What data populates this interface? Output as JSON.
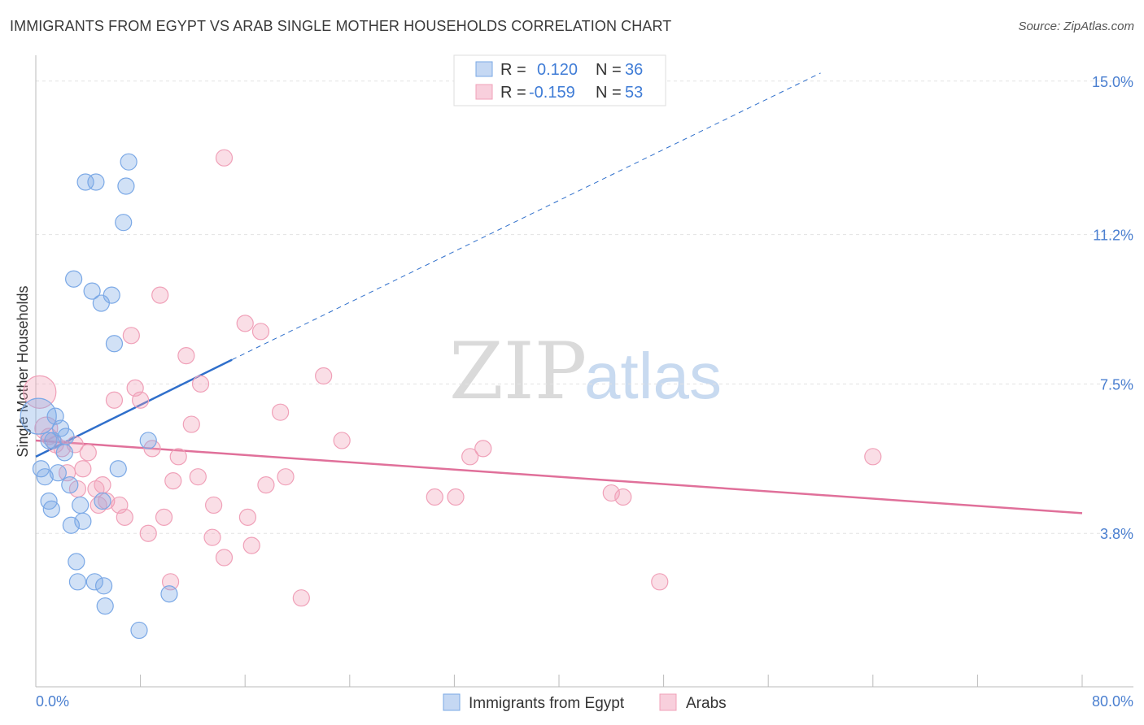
{
  "title": "IMMIGRANTS FROM EGYPT VS ARAB SINGLE MOTHER HOUSEHOLDS CORRELATION CHART",
  "source": "Source: ZipAtlas.com",
  "watermark": {
    "zip": "ZIP",
    "atlas": "atlas"
  },
  "colors": {
    "blue": "#7aa8e6",
    "blue_line": "#2f6fcb",
    "pink": "#f0a0b8",
    "pink_line": "#e0709a",
    "tick": "#4a7fd0"
  },
  "legend": {
    "r_label": "R =",
    "n_label": "N =",
    "rows": [
      {
        "r": "0.120",
        "n": "36"
      },
      {
        "r": "-0.159",
        "n": "53"
      }
    ]
  },
  "chart_data": {
    "type": "scatter",
    "title": "IMMIGRANTS FROM EGYPT VS ARAB SINGLE MOTHER HOUSEHOLDS CORRELATION CHART",
    "xlabel": "",
    "ylabel": "Single Mother Households",
    "xlim": [
      0,
      80
    ],
    "ylim": [
      0,
      15.6
    ],
    "x_tick_labels": [
      "0.0%",
      "80.0%"
    ],
    "y_ticks": [
      3.8,
      7.5,
      11.2,
      15.0
    ],
    "y_tick_labels": [
      "3.8%",
      "7.5%",
      "11.2%",
      "15.0%"
    ],
    "series": [
      {
        "name": "Immigrants from Egypt",
        "color": "#7aa8e6",
        "r": 0.12,
        "n": 36,
        "trend": {
          "x0": 0,
          "y0": 5.7,
          "x1": 15,
          "y1": 8.1,
          "dashed_to_x": 60,
          "dashed_to_y": 15.2
        },
        "points": [
          [
            0.2,
            6.7,
            22
          ],
          [
            0.4,
            5.4,
            10
          ],
          [
            0.7,
            5.2,
            10
          ],
          [
            1.0,
            4.6,
            10
          ],
          [
            1.2,
            4.4,
            10
          ],
          [
            1.3,
            6.1,
            10
          ],
          [
            1.5,
            6.7,
            10
          ],
          [
            1.7,
            5.3,
            10
          ],
          [
            1.9,
            6.4,
            10
          ],
          [
            2.2,
            5.8,
            10
          ],
          [
            2.3,
            6.2,
            10
          ],
          [
            2.6,
            5.0,
            10
          ],
          [
            2.7,
            4.0,
            10
          ],
          [
            2.9,
            10.1,
            10
          ],
          [
            3.1,
            3.1,
            10
          ],
          [
            3.2,
            2.6,
            10
          ],
          [
            3.4,
            4.5,
            10
          ],
          [
            3.6,
            4.1,
            10
          ],
          [
            3.8,
            12.5,
            10
          ],
          [
            4.3,
            9.8,
            10
          ],
          [
            4.5,
            2.6,
            10
          ],
          [
            4.6,
            12.5,
            10
          ],
          [
            5.0,
            9.5,
            10
          ],
          [
            5.1,
            4.6,
            10
          ],
          [
            5.2,
            2.5,
            10
          ],
          [
            5.3,
            2.0,
            10
          ],
          [
            5.8,
            9.7,
            10
          ],
          [
            6.0,
            8.5,
            10
          ],
          [
            6.3,
            5.4,
            10
          ],
          [
            6.7,
            11.5,
            10
          ],
          [
            6.9,
            12.4,
            10
          ],
          [
            7.1,
            13.0,
            10
          ],
          [
            7.9,
            1.4,
            10
          ],
          [
            8.6,
            6.1,
            10
          ],
          [
            10.2,
            2.3,
            10
          ],
          [
            1.0,
            6.1,
            10
          ]
        ]
      },
      {
        "name": "Arabs",
        "color": "#f0a0b8",
        "r": -0.159,
        "n": 53,
        "trend": {
          "x0": 0,
          "y0": 6.1,
          "x1": 80,
          "y1": 4.3
        },
        "points": [
          [
            0.3,
            7.3,
            20
          ],
          [
            0.8,
            6.4,
            14
          ],
          [
            1.0,
            6.2,
            10
          ],
          [
            1.5,
            6.0,
            10
          ],
          [
            2.0,
            5.9,
            10
          ],
          [
            2.4,
            5.3,
            10
          ],
          [
            3.0,
            6.0,
            10
          ],
          [
            3.2,
            4.9,
            10
          ],
          [
            3.6,
            5.4,
            10
          ],
          [
            4.0,
            5.8,
            10
          ],
          [
            4.6,
            4.9,
            10
          ],
          [
            4.8,
            4.5,
            10
          ],
          [
            5.1,
            5.0,
            10
          ],
          [
            5.4,
            4.6,
            10
          ],
          [
            6.0,
            7.1,
            10
          ],
          [
            6.4,
            4.5,
            10
          ],
          [
            6.8,
            4.2,
            10
          ],
          [
            7.3,
            8.7,
            10
          ],
          [
            7.6,
            7.4,
            10
          ],
          [
            8.0,
            7.1,
            10
          ],
          [
            8.6,
            3.8,
            10
          ],
          [
            8.9,
            5.9,
            10
          ],
          [
            9.5,
            9.7,
            10
          ],
          [
            9.8,
            4.2,
            10
          ],
          [
            10.3,
            2.6,
            10
          ],
          [
            10.5,
            5.1,
            10
          ],
          [
            10.9,
            5.7,
            10
          ],
          [
            11.5,
            8.2,
            10
          ],
          [
            11.9,
            6.5,
            10
          ],
          [
            12.4,
            5.2,
            10
          ],
          [
            12.6,
            7.5,
            10
          ],
          [
            13.5,
            3.7,
            10
          ],
          [
            13.6,
            4.5,
            10
          ],
          [
            14.4,
            3.2,
            10
          ],
          [
            16.0,
            9.0,
            10
          ],
          [
            16.2,
            4.2,
            10
          ],
          [
            16.5,
            3.5,
            10
          ],
          [
            17.2,
            8.8,
            10
          ],
          [
            17.6,
            5.0,
            10
          ],
          [
            18.7,
            6.8,
            10
          ],
          [
            19.1,
            5.2,
            10
          ],
          [
            20.3,
            2.2,
            10
          ],
          [
            22.0,
            7.7,
            10
          ],
          [
            23.4,
            6.1,
            10
          ],
          [
            30.5,
            4.7,
            10
          ],
          [
            32.1,
            4.7,
            10
          ],
          [
            33.2,
            5.7,
            10
          ],
          [
            34.2,
            5.9,
            10
          ],
          [
            44.0,
            4.8,
            10
          ],
          [
            44.9,
            4.7,
            10
          ],
          [
            47.7,
            2.6,
            10
          ],
          [
            64.0,
            5.7,
            10
          ],
          [
            14.4,
            13.1,
            10
          ]
        ]
      }
    ]
  },
  "bottom_legend": [
    "Immigrants from Egypt",
    "Arabs"
  ]
}
